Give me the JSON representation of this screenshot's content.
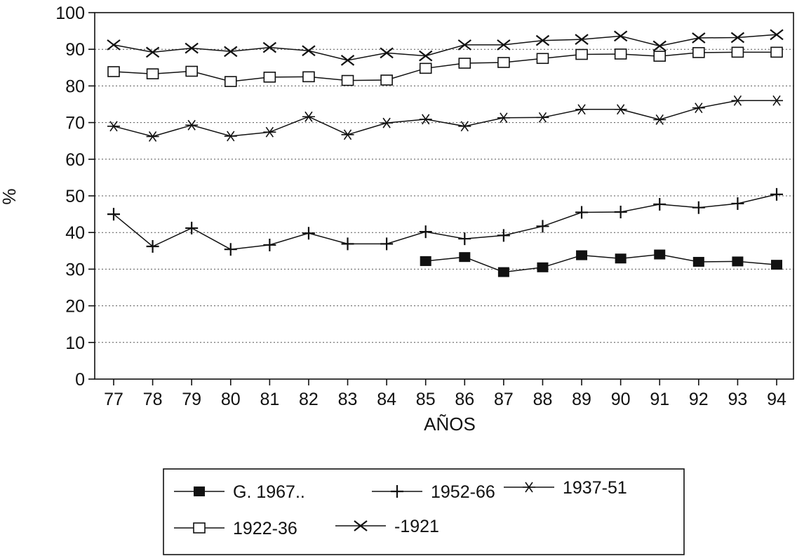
{
  "chart_data": {
    "type": "line",
    "title": "",
    "xlabel": "AÑOS",
    "ylabel": "%",
    "ylim": [
      0,
      100
    ],
    "yticks": [
      "0",
      "10",
      "20",
      "30",
      "40",
      "50",
      "60",
      "70",
      "80",
      "90",
      "100"
    ],
    "categories": [
      "77",
      "78",
      "79",
      "80",
      "81",
      "82",
      "83",
      "84",
      "85",
      "86",
      "87",
      "88",
      "89",
      "90",
      "91",
      "92",
      "93",
      "94"
    ],
    "grid": "horizontal dotted",
    "legend_position": "bottom",
    "series": [
      {
        "name": "G. 1967..",
        "marker": "filled-square",
        "values": [
          null,
          null,
          null,
          null,
          null,
          null,
          null,
          null,
          32.2,
          33.3,
          29.2,
          30.5,
          33.8,
          32.9,
          34.0,
          32.0,
          32.1,
          31.2
        ]
      },
      {
        "name": "1952-66",
        "marker": "plus",
        "values": [
          45.0,
          36.2,
          41.2,
          35.4,
          36.6,
          39.8,
          36.9,
          36.9,
          40.2,
          38.3,
          39.2,
          41.7,
          45.5,
          45.6,
          47.7,
          46.8,
          47.9,
          50.4
        ]
      },
      {
        "name": "1937-51",
        "marker": "asterisk",
        "values": [
          69.0,
          66.2,
          69.3,
          66.3,
          67.4,
          71.6,
          66.7,
          69.9,
          70.9,
          69.0,
          71.3,
          71.4,
          73.6,
          73.6,
          70.8,
          74.0,
          76.0,
          76.0
        ]
      },
      {
        "name": "1922-36",
        "marker": "open-square",
        "values": [
          83.9,
          83.3,
          84.0,
          81.2,
          82.4,
          82.5,
          81.5,
          81.6,
          84.8,
          86.2,
          86.4,
          87.5,
          88.6,
          88.7,
          88.1,
          89.1,
          89.2,
          89.2
        ]
      },
      {
        "name": "-1921",
        "marker": "x",
        "values": [
          91.2,
          89.2,
          90.3,
          89.4,
          90.5,
          89.6,
          87.0,
          89.0,
          88.2,
          91.2,
          91.2,
          92.4,
          92.7,
          93.6,
          90.9,
          93.1,
          93.2,
          94.0
        ]
      }
    ]
  }
}
